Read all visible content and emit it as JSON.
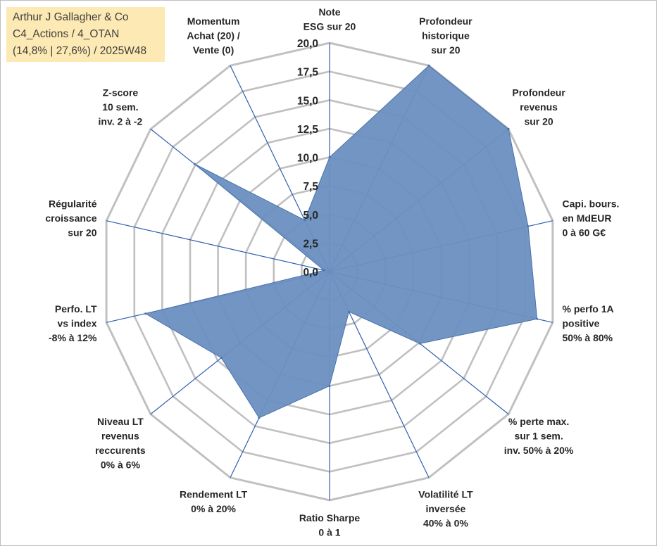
{
  "title": {
    "lines": [
      "Arthur J Gallagher & Co",
      "C4_Actions / 4_OTAN",
      "(14,8% | 27,6%) / 2025W48"
    ]
  },
  "colors": {
    "grid": "#c0c0c0",
    "spoke": "#2e5fae",
    "fill": "#6b8fc0",
    "stroke": "#4a72ad",
    "title_bg": "#fde9b3"
  },
  "chart_data": {
    "type": "radar",
    "rmin": 0,
    "rmax": 20,
    "ticks": [
      "0,0",
      "2,5",
      "5,0",
      "7,5",
      "10,0",
      "12,5",
      "15,0",
      "17,5",
      "20,0"
    ],
    "categories": [
      [
        "Note",
        "ESG sur 20"
      ],
      [
        "Profondeur",
        "historique",
        "sur 20"
      ],
      [
        "Profondeur",
        "revenus",
        "sur 20"
      ],
      [
        "Capi. bours.",
        "en MdEUR",
        "0 à 60 G€"
      ],
      [
        "% perfo 1A",
        "positive",
        "50% à 80%"
      ],
      [
        "% perte max.",
        "sur 1 sem.",
        "inv. 50% à 20%"
      ],
      [
        "Volatilité LT",
        "inversée",
        "40% à 0%"
      ],
      [
        "Ratio Sharpe",
        "0 à 1"
      ],
      [
        "Rendement LT",
        "0% à 20%"
      ],
      [
        "Niveau LT",
        "revenus",
        "reccurents",
        "0% à 6%"
      ],
      [
        "Perfo. LT",
        "vs index",
        "-8% à 12%"
      ],
      [
        "Régularité",
        "croissance",
        "sur 20"
      ],
      [
        "Z-score",
        "10 sem.",
        "inv. 2 à -2"
      ],
      [
        "Momentum",
        "Achat (20) /",
        "Vente (0)"
      ]
    ],
    "series": [
      {
        "name": "Arthur J Gallagher & Co",
        "values": [
          10.0,
          20.0,
          20.0,
          17.8,
          18.6,
          10.1,
          3.9,
          10.0,
          14.2,
          12.1,
          16.5,
          0.5,
          15.1,
          5.0
        ]
      }
    ]
  }
}
